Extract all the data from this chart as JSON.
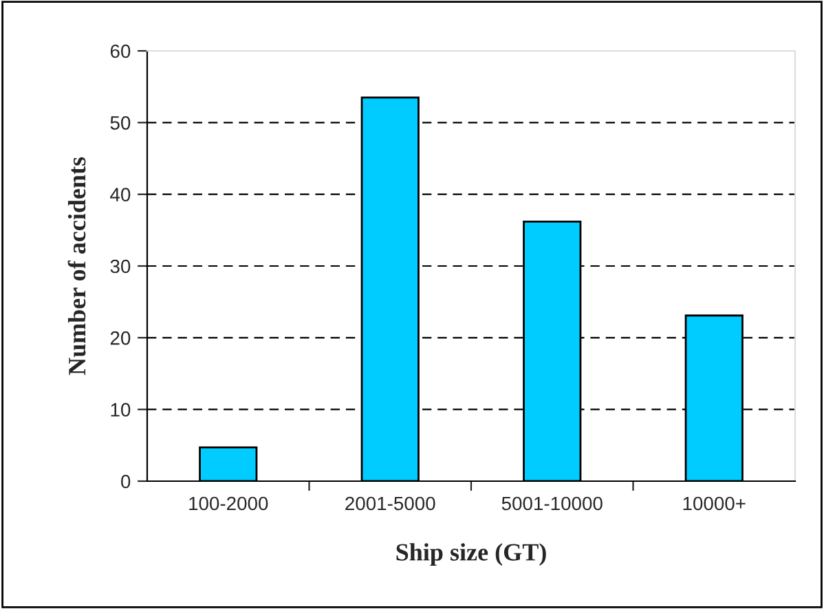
{
  "chart_data": {
    "type": "bar",
    "xlabel": "Ship size (GT)",
    "ylabel": "Number of accidents",
    "categories": [
      "100-2000",
      "2001-5000",
      "5001-10000",
      "10000+"
    ],
    "values": [
      4.7,
      53.5,
      36.2,
      23.1
    ],
    "color": "#00ccff",
    "ylim": [
      0,
      60
    ],
    "yticks": [
      0,
      10,
      20,
      30,
      40,
      50,
      60
    ],
    "grid": "y",
    "line_style": "dashed"
  }
}
